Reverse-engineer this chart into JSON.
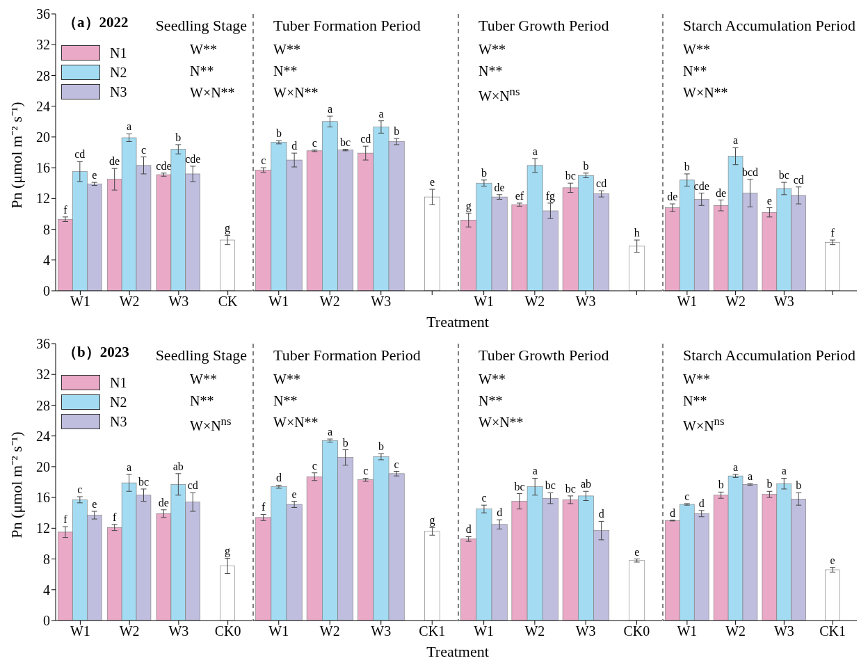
{
  "chart_data": [
    {
      "type": "bar",
      "title": "Seedling Stage",
      "ylabel": "Pn (μmol m⁻² s⁻¹)",
      "categories": [
        "W1",
        "W2",
        "W3",
        "CK"
      ],
      "ylim": [
        0,
        36
      ],
      "yticks": [
        0,
        4,
        8,
        12,
        16,
        20,
        24,
        28,
        32,
        36
      ],
      "legend": "top left",
      "annotations": [
        "（a）2022",
        "W**",
        "N**",
        "W×N**"
      ],
      "series": [
        {
          "name": "N1",
          "color": "#eaa9c7",
          "values": [
            9.3,
            14.5,
            15.1,
            null
          ],
          "errors": [
            0.3,
            1.4,
            0.2,
            null
          ],
          "value_labels": [
            "f",
            "de",
            "cde",
            null
          ]
        },
        {
          "name": "N2",
          "color": "#a3dcf2",
          "values": [
            15.5,
            19.9,
            18.4,
            null
          ],
          "errors": [
            1.3,
            0.5,
            0.6,
            null
          ],
          "value_labels": [
            "cd",
            "a",
            "b",
            null
          ]
        },
        {
          "name": "N3",
          "color": "#bfbedf",
          "values": [
            13.9,
            16.3,
            15.2,
            null
          ],
          "errors": [
            0.2,
            1.1,
            1.0,
            null
          ],
          "value_labels": [
            "e",
            "c",
            "cde",
            null
          ]
        },
        {
          "color": "#ffffff",
          "values": [
            null,
            null,
            null,
            6.6
          ],
          "errors": [
            null,
            null,
            null,
            0.6
          ],
          "value_labels": [
            null,
            null,
            null,
            "g"
          ]
        }
      ]
    },
    {
      "type": "bar",
      "title": "Tuber Formation Period",
      "xlabel": "Treatment",
      "categories": [
        "W1",
        "W2",
        "W3",
        null
      ],
      "ylim": [
        0,
        36
      ],
      "yticks": [
        0,
        4,
        8,
        12,
        16,
        20,
        24,
        28,
        32,
        36
      ],
      "tick_labels": "x",
      "annotations": [
        "W**",
        "N**",
        "W×N**"
      ],
      "series": [
        {
          "color": "#eaa9c7",
          "values": [
            15.7,
            18.2,
            17.9,
            null
          ],
          "errors": [
            0.3,
            0.1,
            0.9,
            null
          ],
          "value_labels": [
            "c",
            "c",
            "cd",
            null
          ]
        },
        {
          "color": "#a3dcf2",
          "values": [
            19.3,
            22.0,
            21.3,
            null
          ],
          "errors": [
            0.2,
            0.7,
            0.8,
            null
          ],
          "value_labels": [
            "b",
            "a",
            "a",
            null
          ]
        },
        {
          "color": "#bfbedf",
          "values": [
            17.0,
            18.3,
            19.4,
            null
          ],
          "errors": [
            0.9,
            0.1,
            0.4,
            null
          ],
          "value_labels": [
            "d",
            "bc",
            "b",
            null
          ]
        },
        {
          "color": "#ffffff",
          "values": [
            null,
            null,
            null,
            12.2
          ],
          "errors": [
            null,
            null,
            null,
            1.0
          ],
          "value_labels": [
            null,
            null,
            null,
            "e"
          ]
        }
      ]
    },
    {
      "type": "bar",
      "title": "Tuber Growth Period",
      "categories": [
        "W1",
        "W2",
        "W3",
        null
      ],
      "ylim": [
        0,
        36
      ],
      "yticks": [
        0,
        4,
        8,
        12,
        16,
        20,
        24,
        28,
        32,
        36
      ],
      "tick_labels": "x",
      "annotations": [
        "W**",
        "N**",
        "W×N$^{ns}$"
      ],
      "series": [
        {
          "color": "#eaa9c7",
          "values": [
            9.2,
            11.2,
            13.4,
            null
          ],
          "errors": [
            0.9,
            0.2,
            0.6,
            null
          ],
          "value_labels": [
            "g",
            "ef",
            "bc",
            null
          ]
        },
        {
          "color": "#a3dcf2",
          "values": [
            14.0,
            16.3,
            15.0,
            null
          ],
          "errors": [
            0.4,
            0.9,
            0.3,
            null
          ],
          "value_labels": [
            "b",
            "a",
            "b",
            null
          ]
        },
        {
          "color": "#bfbedf",
          "values": [
            12.2,
            10.4,
            12.6,
            null
          ],
          "errors": [
            0.3,
            1.0,
            0.4,
            null
          ],
          "value_labels": [
            "de",
            "fg",
            "cd",
            null
          ]
        },
        {
          "color": "#ffffff",
          "values": [
            null,
            null,
            null,
            5.8
          ],
          "errors": [
            null,
            null,
            null,
            0.8
          ],
          "value_labels": [
            null,
            null,
            null,
            "h"
          ]
        }
      ]
    },
    {
      "type": "bar",
      "title": "Starch Accumulation Period",
      "categories": [
        "W1",
        "W2",
        "W3",
        null
      ],
      "ylim": [
        0,
        36
      ],
      "yticks": [
        0,
        4,
        8,
        12,
        16,
        20,
        24,
        28,
        32,
        36
      ],
      "tick_labels": "x",
      "annotations": [
        "W**",
        "N**",
        "W×N**"
      ],
      "series": [
        {
          "color": "#eaa9c7",
          "values": [
            10.8,
            11.1,
            10.2,
            null
          ],
          "errors": [
            0.5,
            0.7,
            0.6,
            null
          ],
          "value_labels": [
            "de",
            "de",
            "e",
            null
          ]
        },
        {
          "color": "#a3dcf2",
          "values": [
            14.4,
            17.5,
            13.3,
            null
          ],
          "errors": [
            0.8,
            1.1,
            0.8,
            null
          ],
          "value_labels": [
            "b",
            "a",
            "bc",
            null
          ]
        },
        {
          "color": "#bfbedf",
          "values": [
            11.9,
            12.7,
            12.4,
            null
          ],
          "errors": [
            0.8,
            1.8,
            1.1,
            null
          ],
          "value_labels": [
            "cde",
            "bcd",
            "cd",
            null
          ]
        },
        {
          "color": "#ffffff",
          "values": [
            null,
            null,
            null,
            6.3
          ],
          "errors": [
            null,
            null,
            null,
            0.3
          ],
          "value_labels": [
            null,
            null,
            null,
            "f"
          ]
        }
      ]
    },
    {
      "type": "bar",
      "title": "Seedling Stage",
      "ylabel": "Pn (μmol m⁻² s⁻¹)",
      "categories": [
        "W1",
        "W2",
        "W3",
        "CK0"
      ],
      "ylim": [
        0,
        36
      ],
      "yticks": [
        0,
        4,
        8,
        12,
        16,
        20,
        24,
        28,
        32,
        36
      ],
      "legend": "top left",
      "annotations": [
        "（b）2023",
        "W**",
        "N**",
        "W×N$^{ns}$"
      ],
      "series": [
        {
          "name": "N1",
          "color": "#eaa9c7",
          "values": [
            11.5,
            12.1,
            13.9,
            null
          ],
          "errors": [
            0.7,
            0.4,
            0.5,
            null
          ],
          "value_labels": [
            "f",
            "f",
            "de",
            null
          ]
        },
        {
          "name": "N2",
          "color": "#a3dcf2",
          "values": [
            15.7,
            17.9,
            17.7,
            null
          ],
          "errors": [
            0.4,
            1.1,
            1.4,
            null
          ],
          "value_labels": [
            "c",
            "a",
            "ab",
            null
          ]
        },
        {
          "name": "N3",
          "color": "#bfbedf",
          "values": [
            13.7,
            16.3,
            15.4,
            null
          ],
          "errors": [
            0.5,
            0.8,
            1.2,
            null
          ],
          "value_labels": [
            "e",
            "bc",
            "cd",
            null
          ]
        },
        {
          "color": "#ffffff",
          "values": [
            null,
            null,
            null,
            7.1
          ],
          "errors": [
            null,
            null,
            null,
            1.0
          ],
          "value_labels": [
            null,
            null,
            null,
            "g"
          ]
        }
      ]
    },
    {
      "type": "bar",
      "title": "Tuber Formation Period",
      "xlabel": "Treatment",
      "categories": [
        "W1",
        "W2",
        "W3",
        "CK1"
      ],
      "ylim": [
        0,
        36
      ],
      "yticks": [
        0,
        4,
        8,
        12,
        16,
        20,
        24,
        28,
        32,
        36
      ],
      "tick_labels": "x",
      "annotations": [
        "W**",
        "N**",
        "W×N**"
      ],
      "series": [
        {
          "color": "#eaa9c7",
          "values": [
            13.4,
            18.7,
            18.3,
            null
          ],
          "errors": [
            0.4,
            0.5,
            0.2,
            null
          ],
          "value_labels": [
            "f",
            "c",
            "c",
            null
          ]
        },
        {
          "color": "#a3dcf2",
          "values": [
            17.4,
            23.4,
            21.3,
            null
          ],
          "errors": [
            0.2,
            0.2,
            0.4,
            null
          ],
          "value_labels": [
            "d",
            "a",
            "b",
            null
          ]
        },
        {
          "color": "#bfbedf",
          "values": [
            15.1,
            21.2,
            19.1,
            null
          ],
          "errors": [
            0.4,
            1.0,
            0.3,
            null
          ],
          "value_labels": [
            "e",
            "b",
            "c",
            null
          ]
        },
        {
          "color": "#ffffff",
          "values": [
            null,
            null,
            null,
            11.6
          ],
          "errors": [
            null,
            null,
            null,
            0.5
          ],
          "value_labels": [
            null,
            null,
            null,
            "g"
          ]
        }
      ]
    },
    {
      "type": "bar",
      "title": "Tuber Growth Period",
      "categories": [
        "W1",
        "W2",
        "W3",
        "CK0"
      ],
      "ylim": [
        0,
        36
      ],
      "yticks": [
        0,
        4,
        8,
        12,
        16,
        20,
        24,
        28,
        32,
        36
      ],
      "tick_labels": "x",
      "annotations": [
        "W**",
        "N**",
        "W×N**"
      ],
      "series": [
        {
          "color": "#eaa9c7",
          "values": [
            10.6,
            15.5,
            15.7,
            null
          ],
          "errors": [
            0.3,
            1.0,
            0.5,
            null
          ],
          "value_labels": [
            "d",
            "bc",
            "bc",
            null
          ]
        },
        {
          "color": "#a3dcf2",
          "values": [
            14.5,
            17.4,
            16.2,
            null
          ],
          "errors": [
            0.5,
            1.1,
            0.6,
            null
          ],
          "value_labels": [
            "c",
            "a",
            "ab",
            null
          ]
        },
        {
          "color": "#bfbedf",
          "values": [
            12.5,
            15.9,
            11.7,
            null
          ],
          "errors": [
            0.6,
            0.7,
            1.2,
            null
          ],
          "value_labels": [
            "d",
            "bc",
            "d",
            null
          ]
        },
        {
          "color": "#ffffff",
          "values": [
            null,
            null,
            null,
            7.8
          ],
          "errors": [
            null,
            null,
            null,
            0.2
          ],
          "value_labels": [
            null,
            null,
            null,
            "e"
          ]
        }
      ]
    },
    {
      "type": "bar",
      "title": "Starch Accumulation Period",
      "categories": [
        "W1",
        "W2",
        "W3",
        "CK1"
      ],
      "ylim": [
        0,
        36
      ],
      "yticks": [
        0,
        4,
        8,
        12,
        16,
        20,
        24,
        28,
        32,
        36
      ],
      "tick_labels": "x",
      "annotations": [
        "W**",
        "N**",
        "W×N$^{ns}$"
      ],
      "series": [
        {
          "color": "#eaa9c7",
          "values": [
            13.0,
            16.3,
            16.4,
            null
          ],
          "errors": [
            0.05,
            0.4,
            0.4,
            null
          ],
          "value_labels": [
            "d",
            "b",
            "b",
            null
          ]
        },
        {
          "color": "#a3dcf2",
          "values": [
            15.1,
            18.8,
            17.8,
            null
          ],
          "errors": [
            0.1,
            0.2,
            0.7,
            null
          ],
          "value_labels": [
            "c",
            "a",
            "a",
            null
          ]
        },
        {
          "color": "#bfbedf",
          "values": [
            13.9,
            17.7,
            15.8,
            null
          ],
          "errors": [
            0.4,
            0.1,
            0.8,
            null
          ],
          "value_labels": [
            "d",
            "a",
            "b",
            null
          ]
        },
        {
          "color": "#ffffff",
          "values": [
            null,
            null,
            null,
            6.6
          ],
          "errors": [
            null,
            null,
            null,
            0.3
          ],
          "value_labels": [
            null,
            null,
            null,
            "e"
          ]
        }
      ]
    }
  ]
}
